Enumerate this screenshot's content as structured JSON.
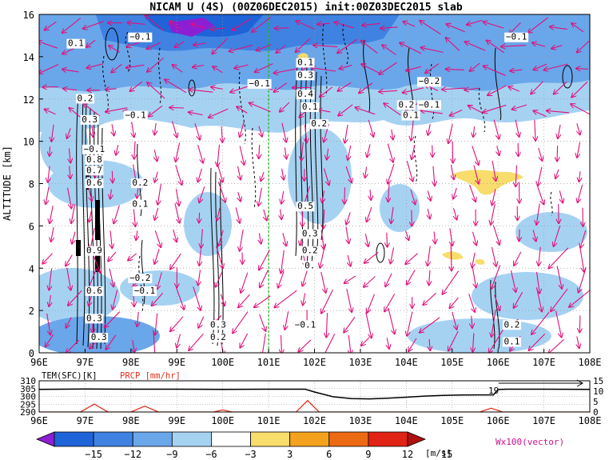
{
  "title": "NICAM U (4S) (00Z06DEC2015) init:00Z03DEC2015 slab",
  "chart_data": [
    {
      "type": "heatmap",
      "panel": "main",
      "ylabel": "ALTITUDE [km]",
      "xlim": [
        96,
        108
      ],
      "ylim": [
        0,
        16
      ],
      "x_ticks": [
        "96E",
        "97E",
        "98E",
        "99E",
        "100E",
        "101E",
        "102E",
        "103E",
        "104E",
        "105E",
        "106E",
        "107E",
        "108E"
      ],
      "y_ticks": [
        "0",
        "2",
        "4",
        "6",
        "8",
        "10",
        "12",
        "14",
        "16"
      ],
      "grid": true,
      "marker_line_x": 101,
      "contour_labels": [
        {
          "text": "0.1",
          "x": 96.8,
          "y": 14.5
        },
        {
          "text": "−0.1",
          "x": 98.2,
          "y": 14.8
        },
        {
          "text": "−0.1",
          "x": 100.8,
          "y": 12.6
        },
        {
          "text": "0.1",
          "x": 101.8,
          "y": 13.6
        },
        {
          "text": "0.3",
          "x": 101.8,
          "y": 13.0
        },
        {
          "text": "0.4",
          "x": 101.8,
          "y": 12.1
        },
        {
          "text": "0.1",
          "x": 101.9,
          "y": 11.5
        },
        {
          "text": "0.2",
          "x": 102.1,
          "y": 10.7
        },
        {
          "text": "−0.2",
          "x": 104.5,
          "y": 12.7
        },
        {
          "text": "0.2",
          "x": 104.0,
          "y": 11.6
        },
        {
          "text": "−0.1",
          "x": 104.5,
          "y": 11.6
        },
        {
          "text": "0.1",
          "x": 104.1,
          "y": 11.1
        },
        {
          "text": "−0.1",
          "x": 106.4,
          "y": 14.8
        },
        {
          "text": "0.2",
          "x": 97.0,
          "y": 11.9
        },
        {
          "text": "0.3",
          "x": 97.1,
          "y": 10.9
        },
        {
          "text": "−0.1",
          "x": 98.1,
          "y": 11.1
        },
        {
          "text": "−0.1",
          "x": 97.2,
          "y": 9.5
        },
        {
          "text": "0.2",
          "x": 98.2,
          "y": 7.9
        },
        {
          "text": "0.1",
          "x": 98.2,
          "y": 6.9
        },
        {
          "text": "0.5",
          "x": 101.8,
          "y": 6.8
        },
        {
          "text": "0.3",
          "x": 101.9,
          "y": 5.5
        },
        {
          "text": "0.2",
          "x": 101.9,
          "y": 4.7
        },
        {
          "text": "0.",
          "x": 101.9,
          "y": 4.0
        },
        {
          "text": "−0.2",
          "x": 98.2,
          "y": 3.4
        },
        {
          "text": "−0.1",
          "x": 98.3,
          "y": 2.8
        },
        {
          "text": "0.3",
          "x": 99.9,
          "y": 1.2
        },
        {
          "text": "0.2",
          "x": 99.9,
          "y": 0.6
        },
        {
          "text": "−0.1",
          "x": 101.8,
          "y": 1.2
        },
        {
          "text": "0.2",
          "x": 106.3,
          "y": 1.2
        },
        {
          "text": "0.1",
          "x": 106.3,
          "y": 0.4
        },
        {
          "text": "0.9",
          "x": 97.2,
          "y": 4.7
        },
        {
          "text": "0.6",
          "x": 97.2,
          "y": 2.8
        },
        {
          "text": "0.3",
          "x": 97.2,
          "y": 1.5
        },
        {
          "text": "0.3",
          "x": 97.3,
          "y": 0.6
        },
        {
          "text": "0.8",
          "x": 97.2,
          "y": 9.0
        },
        {
          "text": "0.7",
          "x": 97.2,
          "y": 8.5
        },
        {
          "text": "0.6",
          "x": 97.2,
          "y": 7.9
        }
      ]
    },
    {
      "type": "line",
      "panel": "bottom",
      "left_axis_label": "TEM(SFC)[K]",
      "right_axis_label": "PRCP [mm/hr]",
      "left_ticks": [
        "310",
        "305",
        "300",
        "295",
        "290"
      ],
      "right_ticks": [
        "15",
        "10",
        "5",
        "0"
      ],
      "left_ylim": [
        290,
        310
      ],
      "right_ylim": [
        0,
        15
      ],
      "x_ticks": [
        "96E",
        "97E",
        "98E",
        "99E",
        "100E",
        "101E",
        "102E",
        "103E",
        "104E",
        "105E",
        "106E",
        "107E",
        "108E"
      ],
      "series": [
        {
          "name": "TEM(SFC)[K]",
          "color": "#000000",
          "x": [
            96,
            97,
            98,
            99,
            100,
            101,
            101.8,
            102.0,
            102.4,
            102.8,
            103.2,
            103.6,
            104.0,
            104.4,
            104.8,
            105.2,
            105.6,
            105.9,
            106.0,
            106.2,
            107,
            108
          ],
          "y": [
            304.5,
            304.7,
            304.6,
            304.6,
            304.5,
            304.6,
            304.6,
            302.8,
            299.8,
            298.6,
            298.4,
            298.8,
            299.5,
            300.2,
            300.6,
            300.9,
            301.0,
            301.0,
            304.4,
            304.6,
            304.6,
            304.5
          ]
        },
        {
          "name": "PRCP [mm/hr]",
          "color": "#e0301e",
          "x": [
            96,
            96.9,
            97.2,
            97.5,
            98.0,
            98.3,
            98.6,
            99.0,
            99.8,
            100.0,
            100.2,
            101,
            101.6,
            101.85,
            102.1,
            102.6,
            105.6,
            105.85,
            106.1,
            106.4,
            108
          ],
          "y": [
            0,
            0,
            3.8,
            0,
            0,
            2.8,
            0,
            0,
            0,
            1.0,
            0,
            0,
            0,
            5.5,
            0,
            0,
            0,
            1.8,
            0,
            0,
            0
          ]
        }
      ],
      "annotation": "19"
    },
    {
      "type": "colorbar",
      "ticks": [
        "−15",
        "−12",
        "−9",
        "−6",
        "−3",
        "3",
        "6",
        "9",
        "12",
        "15"
      ],
      "unit": "[m/s]",
      "colors": [
        "#8c1fd4",
        "#1f63d8",
        "#3f82e2",
        "#6aa6ea",
        "#a6d2f2",
        "#ffffff",
        "#f8dc6c",
        "#f4a21e",
        "#ed6a14",
        "#e02314",
        "#b01010"
      ],
      "vector_label": "Wx100(vector)"
    }
  ]
}
